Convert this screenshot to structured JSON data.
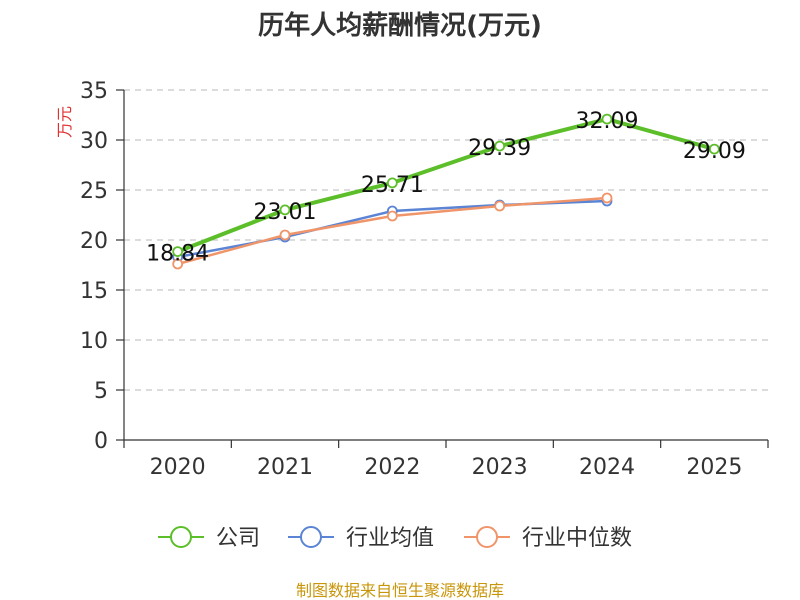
{
  "chart_data": {
    "type": "line",
    "title": "历年人均薪酬情况(万元)",
    "ylabel": "万元",
    "xlabel": "",
    "categories": [
      "2020",
      "2021",
      "2022",
      "2023",
      "2024",
      "2025"
    ],
    "ylim": [
      0,
      35
    ],
    "yticks": [
      0,
      5,
      10,
      15,
      20,
      25,
      30,
      35
    ],
    "grid": true,
    "legend_position": "bottom",
    "series": [
      {
        "name": "公司",
        "color": "#5cbf2a",
        "values": [
          18.84,
          23.01,
          25.71,
          29.39,
          32.09,
          29.09
        ],
        "labels": [
          "18.84",
          "23.01",
          "25.71",
          "29.39",
          "32.09",
          "29.09"
        ]
      },
      {
        "name": "行业均值",
        "color": "#5b84d4",
        "values": [
          18.3,
          20.3,
          22.9,
          23.5,
          23.9,
          null
        ]
      },
      {
        "name": "行业中位数",
        "color": "#f0956a",
        "values": [
          17.6,
          20.5,
          22.4,
          23.4,
          24.2,
          null
        ]
      }
    ],
    "source": "制图数据来自恒生聚源数据库"
  }
}
